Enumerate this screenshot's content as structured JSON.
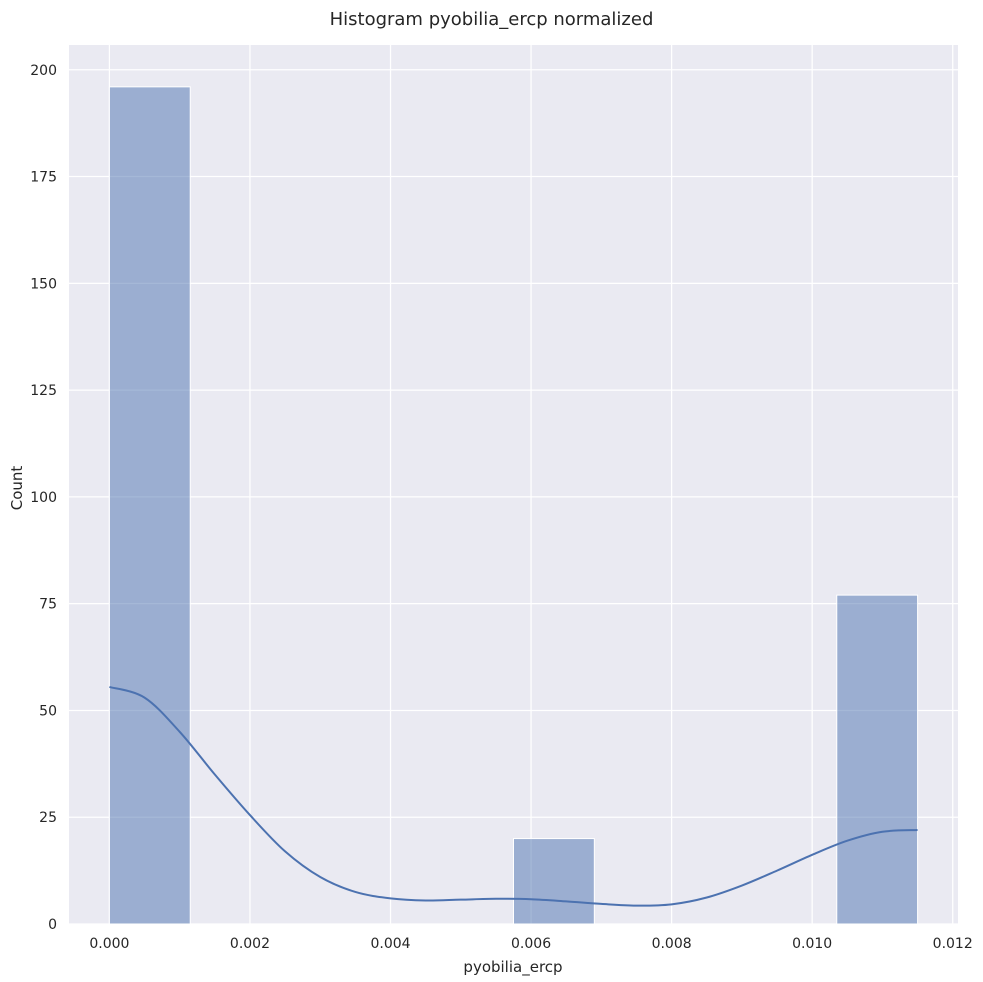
{
  "chart_data": {
    "type": "bar",
    "subtype": "histogram",
    "title": "Histogram pyobilia_ercp normalized",
    "xlabel": "pyobilia_ercp",
    "ylabel": "Count",
    "xlim": [
      -0.000575,
      0.012075
    ],
    "ylim": [
      0,
      205.8
    ],
    "xticks": [
      0.0,
      0.002,
      0.004,
      0.006,
      0.008,
      0.01,
      0.012
    ],
    "xtick_labels": [
      "0.000",
      "0.002",
      "0.004",
      "0.006",
      "0.008",
      "0.010",
      "0.012"
    ],
    "yticks": [
      0,
      25,
      50,
      75,
      100,
      125,
      150,
      175,
      200
    ],
    "ytick_labels": [
      "0",
      "25",
      "50",
      "75",
      "100",
      "125",
      "150",
      "175",
      "200"
    ],
    "grid": true,
    "bins": [
      {
        "x0": 0.0,
        "x1": 0.00115,
        "count": 196
      },
      {
        "x0": 0.00575,
        "x1": 0.0069,
        "count": 20
      },
      {
        "x0": 0.01035,
        "x1": 0.0115,
        "count": 77
      }
    ],
    "kde_curve": {
      "x": [
        0.0,
        0.0005,
        0.001,
        0.0015,
        0.002,
        0.0025,
        0.003,
        0.0035,
        0.004,
        0.0045,
        0.005,
        0.0055,
        0.006,
        0.0065,
        0.007,
        0.0075,
        0.008,
        0.0085,
        0.009,
        0.0095,
        0.01,
        0.0105,
        0.011,
        0.0115
      ],
      "y": [
        55.5,
        53,
        45,
        35,
        25.5,
        17,
        11,
        7.5,
        6,
        5.5,
        5.7,
        5.9,
        5.8,
        5.3,
        4.7,
        4.3,
        4.6,
        6.2,
        9,
        12.5,
        16.2,
        19.5,
        21.6,
        22
      ]
    },
    "colors": {
      "background": "#eaeaf2",
      "grid": "#ffffff",
      "bar_fill": "#4c72b0",
      "bar_opacity": 0.5,
      "kde_line": "#4c72b0"
    }
  }
}
